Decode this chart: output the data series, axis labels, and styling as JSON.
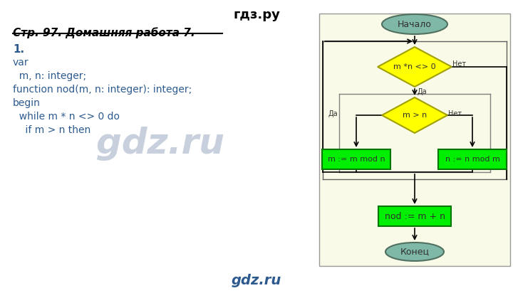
{
  "bg_color": "#FFFFFF",
  "title_top": "гдз.ру",
  "title_bottom": "gdz.ru",
  "heading": "Стр. 97. Домашняя работа 7.",
  "code_lines": [
    "1.",
    "var",
    "  m, n: integer;",
    "function nod(m, n: integer): integer;",
    "begin",
    "  while m * n <> 0 do",
    "    if m > n then"
  ],
  "fc_bg_color": "#FAFAE8",
  "fc_border_color": "#999999",
  "start_end_color": "#80B8A8",
  "start_end_edge": "#507060",
  "decision_color": "#FFFF00",
  "decision_edge": "#A0A000",
  "process_color": "#00EE00",
  "process_edge": "#007700",
  "text_color": "#303030",
  "watermark_color": "#C0C8D8",
  "arrow_color": "#000000"
}
